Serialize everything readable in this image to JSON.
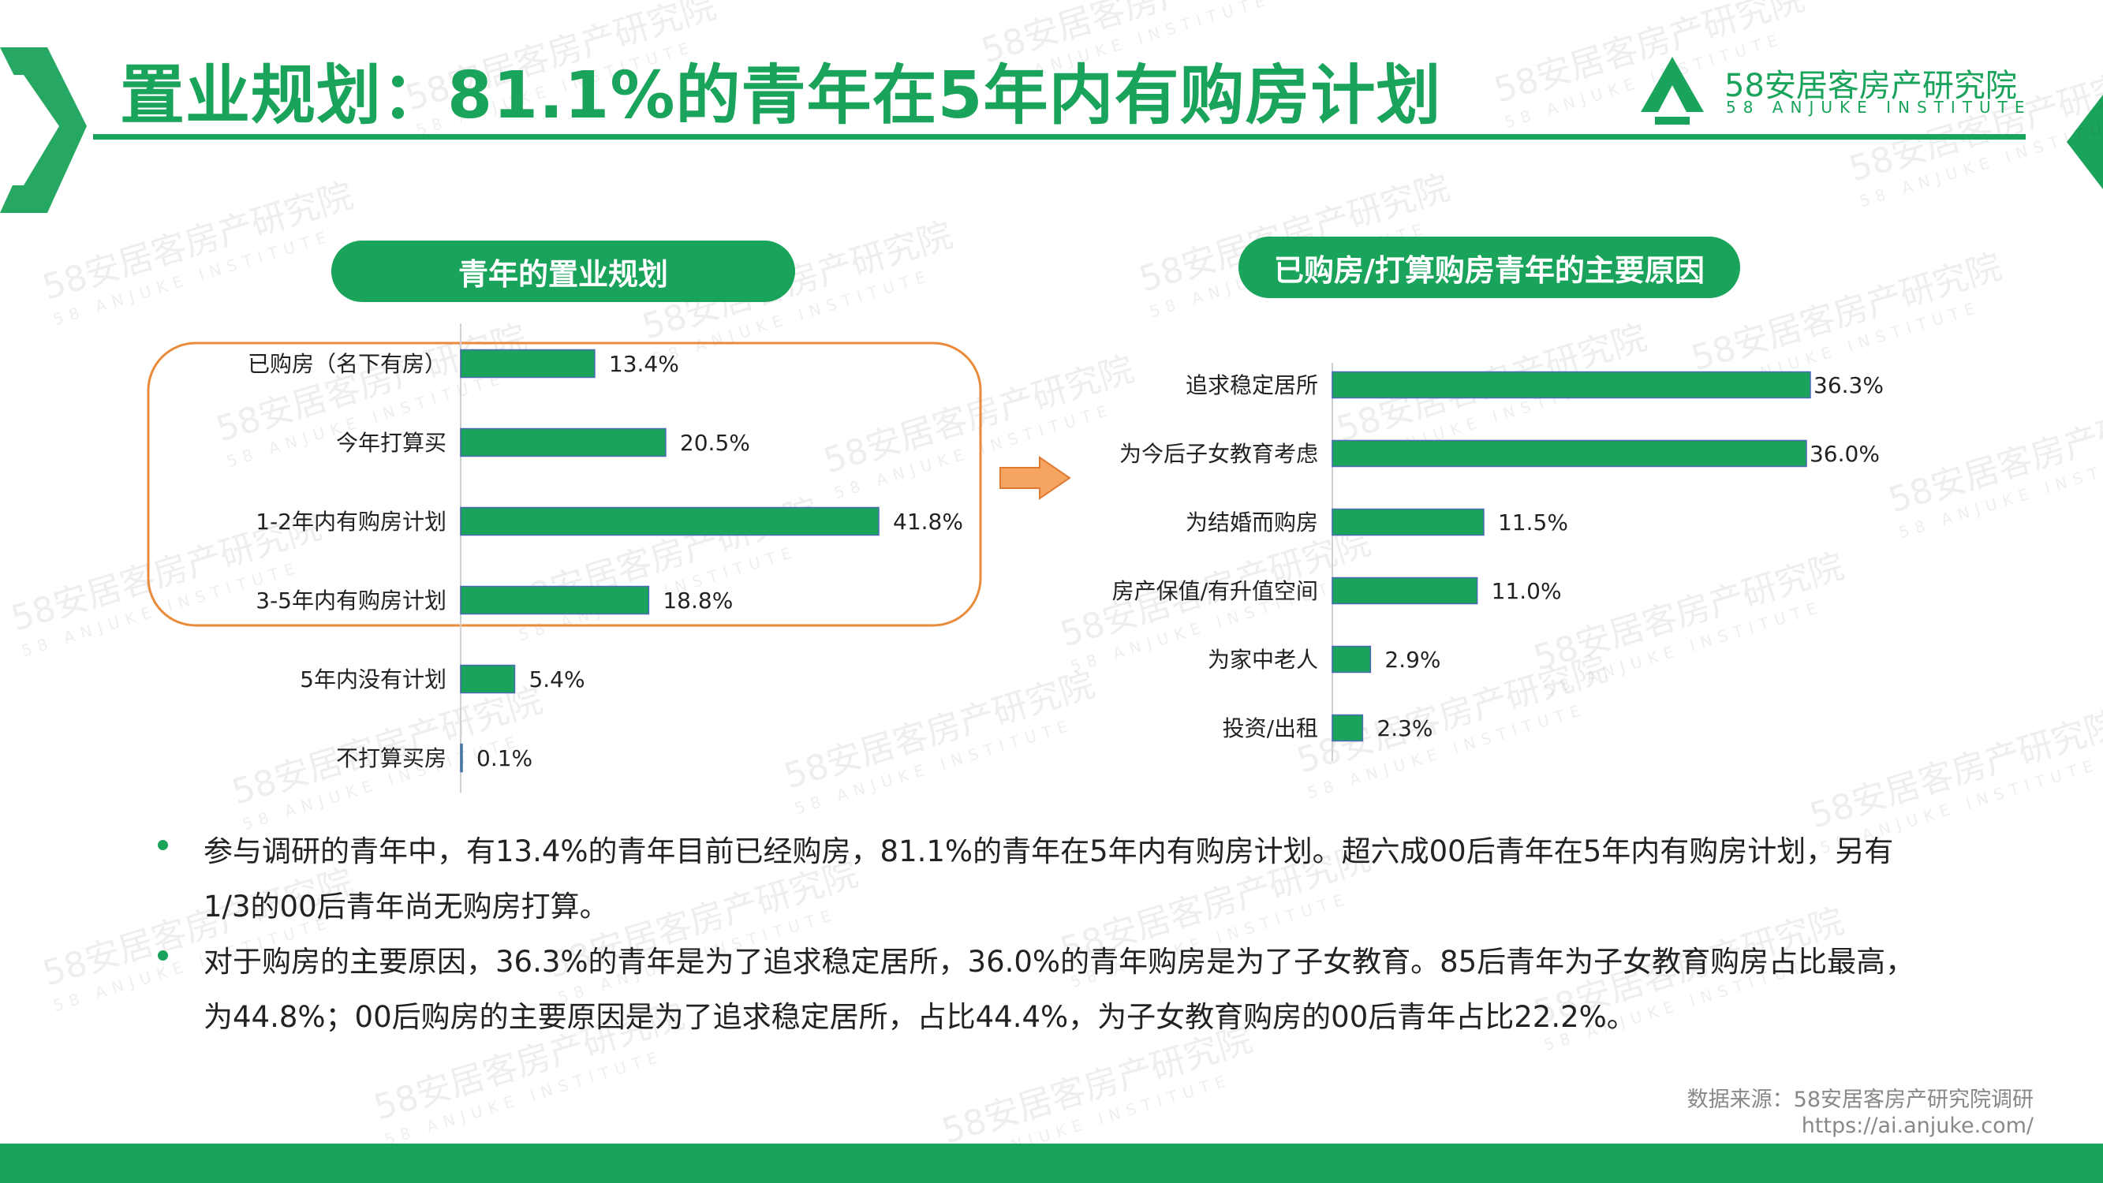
{
  "page": {
    "title": "置业规划：81.1%的青年在5年内有购房计划",
    "logo_cn": "58安居客房产研究院",
    "logo_en": "58 ANJUKE INSTITUTE",
    "watermark_cn": "58安居客房产研究院",
    "watermark_en": "58 ANJUKE INSTITUTE"
  },
  "colors": {
    "accent": "#1aa35a",
    "highlight_box": "#e98b3a",
    "arrow": "#f5a462"
  },
  "chart_data": [
    {
      "type": "bar",
      "orientation": "horizontal",
      "title": "青年的置业规划",
      "categories": [
        "已购房（名下有房）",
        "今年打算买",
        "1-2年内有购房计划",
        "3-5年内有购房计划",
        "5年内没有计划",
        "不打算买房"
      ],
      "values": [
        13.4,
        20.5,
        41.8,
        18.8,
        5.4,
        0.1
      ],
      "labels": [
        "13.4%",
        "20.5%",
        "41.8%",
        "18.8%",
        "5.4%",
        "0.1%"
      ],
      "highlighted_categories": [
        "已购房（名下有房）",
        "今年打算买",
        "1-2年内有购房计划",
        "3-5年内有购房计划"
      ],
      "xlim": [
        0,
        41.8
      ],
      "color": "#1aa35a",
      "grid": false
    },
    {
      "type": "bar",
      "orientation": "horizontal",
      "title": "已购房/打算购房青年的主要原因",
      "categories": [
        "追求稳定居所",
        "为今后子女教育考虑",
        "为结婚而购房",
        "房产保值/有升值空间",
        "为家中老人",
        "投资/出租"
      ],
      "values": [
        36.3,
        36.0,
        11.5,
        11.0,
        2.9,
        2.3
      ],
      "labels": [
        "36.3%",
        "36.0%",
        "11.5%",
        "11.0%",
        "2.9%",
        "2.3%"
      ],
      "xlim": [
        0,
        36.3
      ],
      "color": "#1aa35a",
      "grid": false
    }
  ],
  "bullets": [
    "参与调研的青年中，有13.4%的青年目前已经购房，81.1%的青年在5年内有购房计划。超六成00后青年在5年内有购房计划，另有1/3的00后青年尚无购房打算。",
    "对于购房的主要原因，36.3%的青年是为了追求稳定居所，36.0%的青年购房是为了子女教育。85后青年为子女教育购房占比最高，为44.8%；00后购房的主要原因是为了追求稳定居所，占比44.4%，为子女教育购房的00后青年占比22.2%。"
  ],
  "source": {
    "line1": "数据来源：58安居客房产研究院调研",
    "line2": "https://ai.anjuke.com/"
  }
}
